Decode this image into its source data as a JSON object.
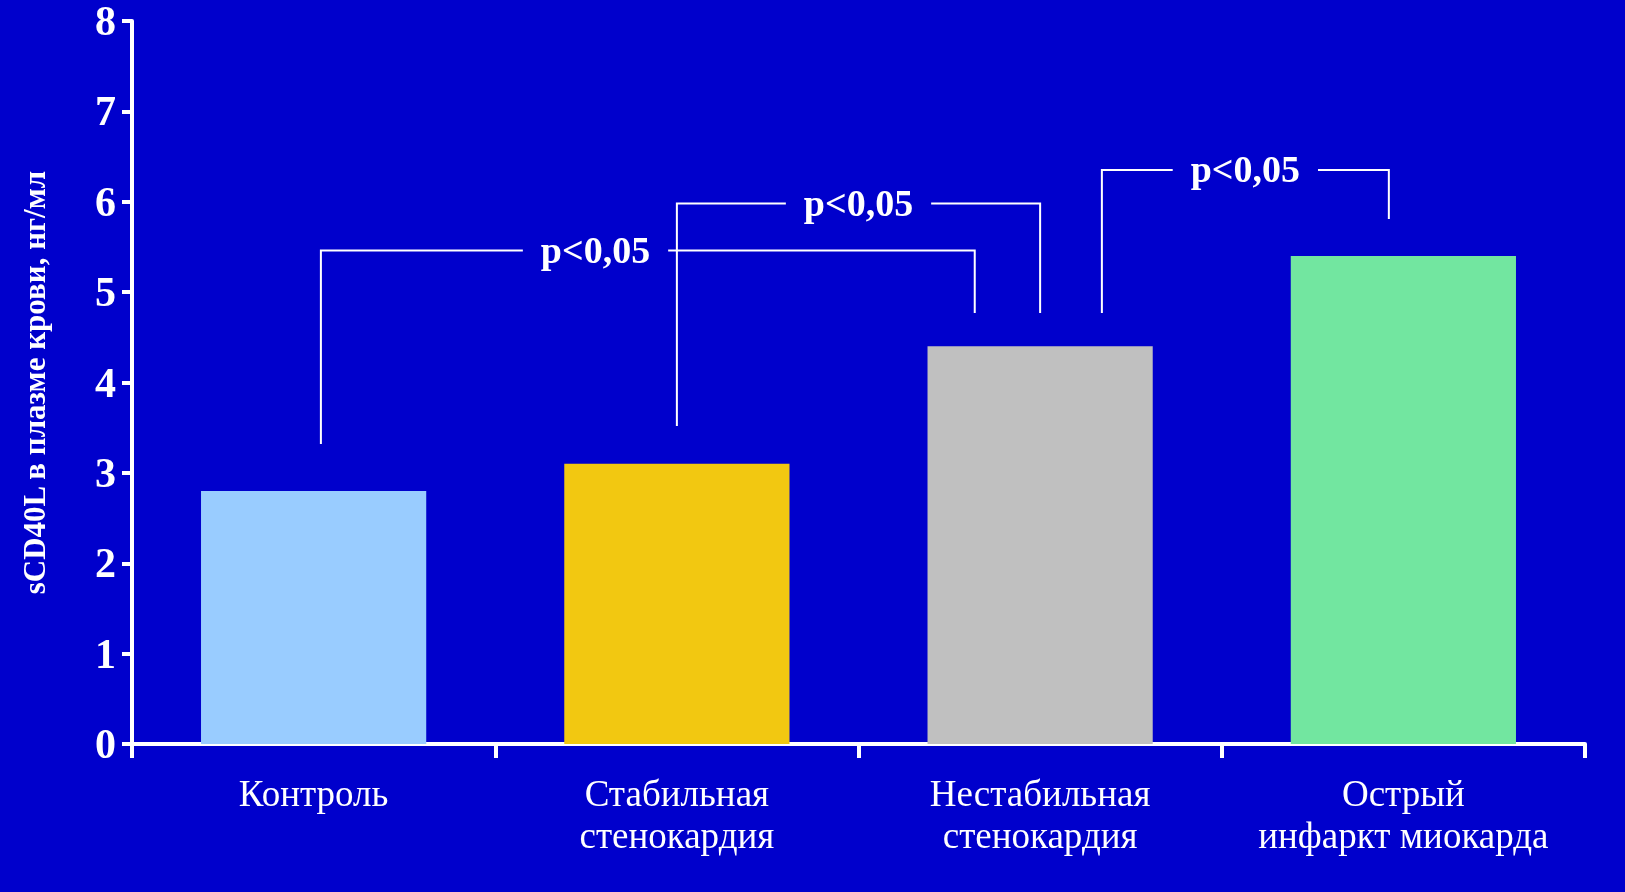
{
  "chart_data": {
    "type": "bar",
    "ylabel": "sCD40L в плазме крови, нг/мл",
    "categories": [
      "Контроль",
      "Стабильная\nстенокардия",
      "Нестабильная\nстенокардия",
      "Острый\nинфаркт миокарда"
    ],
    "values": [
      2.8,
      3.1,
      4.4,
      5.4
    ],
    "colors": [
      "#99ccff",
      "#f2c811",
      "#c0c0c0",
      "#72e6a0"
    ],
    "ylim": [
      0,
      8
    ],
    "yticks": [
      0,
      1,
      2,
      3,
      4,
      5,
      6,
      7,
      8
    ],
    "grid": false,
    "annotations": [
      "p<0,05",
      "p<0,05",
      "p<0,05"
    ]
  }
}
